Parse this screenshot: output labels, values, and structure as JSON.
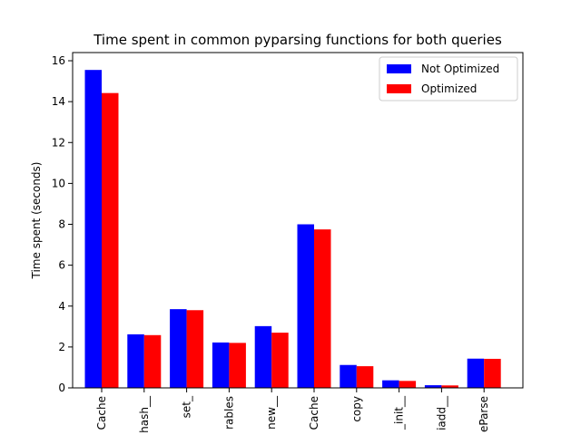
{
  "chart_data": {
    "type": "bar",
    "title": "Time spent in common pyparsing functions for both queries",
    "xlabel": "",
    "ylabel": "Time spent (seconds)",
    "ylim": [
      0,
      16.4
    ],
    "yticks": [
      0,
      2,
      4,
      6,
      8,
      10,
      12,
      14,
      16
    ],
    "ytick_labels": [
      "0",
      "2",
      "4",
      "6",
      "8",
      "10",
      "12",
      "14",
      "16"
    ],
    "categories": [
      "Cache",
      "hash__",
      "set_",
      "rables",
      "new__",
      "Cache",
      "copy",
      "_init__",
      "iadd__",
      "eParse"
    ],
    "series": [
      {
        "name": "Not Optimized",
        "color": "#0000ff",
        "values": [
          15.55,
          2.62,
          3.85,
          2.22,
          3.02,
          8.0,
          1.12,
          0.37,
          0.13,
          1.43
        ]
      },
      {
        "name": "Optimized",
        "color": "#ff0000",
        "values": [
          14.42,
          2.58,
          3.8,
          2.2,
          2.7,
          7.75,
          1.06,
          0.34,
          0.12,
          1.42
        ]
      }
    ],
    "legend_position": "top-right",
    "grid": false
  }
}
